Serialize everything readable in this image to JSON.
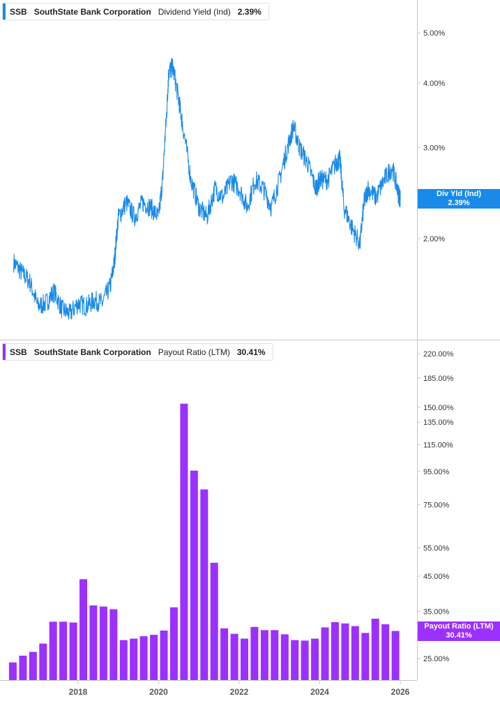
{
  "colors": {
    "yield": "#1a8ae8",
    "payout": "#9b30ff",
    "axis": "#c8c8c8"
  },
  "top_legend": {
    "ticker": "SSB",
    "company": "SouthState Bank Corporation",
    "metric": "Dividend Yield (Ind)",
    "value": "2.39%"
  },
  "bottom_legend": {
    "ticker": "SSB",
    "company": "SouthState Bank Corporation",
    "metric": "Payout Ratio (LTM)",
    "value": "30.41%"
  },
  "top_badge": {
    "label": "Div Yld (Ind)",
    "value": "2.39%"
  },
  "bottom_badge": {
    "label": "Payout Ratio (LTM)",
    "value": "30.41%"
  },
  "chart_data": [
    {
      "type": "line",
      "title": "SSB SouthState Bank Corporation Dividend Yield (Ind) 2.39%",
      "scale": "log",
      "series": [
        {
          "name": "Dividend Yield (Ind)"
        }
      ],
      "y_ticks": [
        {
          "label": "5.00%",
          "value": 5.0
        },
        {
          "label": "4.00%",
          "value": 4.0
        },
        {
          "label": "3.00%",
          "value": 3.0
        },
        {
          "label": "2.00%",
          "value": 2.0
        }
      ],
      "x": [
        2016.4,
        2016.6,
        2016.8,
        2017.0,
        2017.2,
        2017.4,
        2017.6,
        2017.8,
        2018.0,
        2018.2,
        2018.4,
        2018.6,
        2018.8,
        2018.9,
        2019.0,
        2019.2,
        2019.4,
        2019.6,
        2019.8,
        2020.0,
        2020.1,
        2020.2,
        2020.25,
        2020.35,
        2020.5,
        2020.6,
        2020.8,
        2021.0,
        2021.2,
        2021.4,
        2021.6,
        2021.8,
        2022.0,
        2022.2,
        2022.4,
        2022.6,
        2022.8,
        2023.0,
        2023.2,
        2023.35,
        2023.5,
        2023.7,
        2023.9,
        2024.0,
        2024.2,
        2024.4,
        2024.5,
        2024.6,
        2024.8,
        2025.0,
        2025.1,
        2025.2,
        2025.4,
        2025.6,
        2025.8,
        2025.95,
        2026.0
      ],
      "y": [
        1.8,
        1.72,
        1.65,
        1.48,
        1.5,
        1.58,
        1.46,
        1.43,
        1.5,
        1.48,
        1.52,
        1.5,
        1.62,
        1.8,
        2.2,
        2.35,
        2.2,
        2.35,
        2.3,
        2.2,
        2.6,
        3.5,
        4.2,
        4.3,
        3.7,
        3.3,
        2.6,
        2.3,
        2.2,
        2.5,
        2.4,
        2.6,
        2.5,
        2.3,
        2.6,
        2.5,
        2.3,
        2.6,
        3.0,
        3.3,
        3.0,
        2.8,
        2.5,
        2.6,
        2.6,
        2.8,
        2.85,
        2.3,
        2.1,
        1.95,
        2.35,
        2.5,
        2.4,
        2.6,
        2.75,
        2.45,
        2.39
      ],
      "last_value": 2.39
    },
    {
      "type": "bar",
      "title": "SSB SouthState Bank Corporation Payout Ratio (LTM) 30.41%",
      "scale": "log",
      "series": [
        {
          "name": "Payout Ratio (LTM)"
        }
      ],
      "y_ticks": [
        {
          "label": "220.00%",
          "value": 220
        },
        {
          "label": "185.00%",
          "value": 185
        },
        {
          "label": "150.00%",
          "value": 150
        },
        {
          "label": "135.00%",
          "value": 135
        },
        {
          "label": "115.00%",
          "value": 115
        },
        {
          "label": "95.00%",
          "value": 95
        },
        {
          "label": "75.00%",
          "value": 75
        },
        {
          "label": "55.00%",
          "value": 55
        },
        {
          "label": "45.00%",
          "value": 45
        },
        {
          "label": "35.00%",
          "value": 35
        },
        {
          "label": "25.00%",
          "value": 25
        }
      ],
      "x_ticks": [
        "2018",
        "2020",
        "2022",
        "2024",
        "2026"
      ],
      "x_tick_values": [
        2018,
        2020,
        2022,
        2024,
        2026
      ],
      "bar_x": [
        2016.38,
        2016.63,
        2016.88,
        2017.13,
        2017.38,
        2017.63,
        2017.88,
        2018.13,
        2018.38,
        2018.63,
        2018.88,
        2019.13,
        2019.38,
        2019.63,
        2019.88,
        2020.13,
        2020.38,
        2020.63,
        2020.88,
        2021.13,
        2021.38,
        2021.63,
        2021.88,
        2022.13,
        2022.38,
        2022.63,
        2022.88,
        2023.13,
        2023.38,
        2023.63,
        2023.88,
        2024.13,
        2024.38,
        2024.63,
        2024.88,
        2025.13,
        2025.38,
        2025.63,
        2025.88
      ],
      "values": [
        24.3,
        25.5,
        26.2,
        27.8,
        32.5,
        32.5,
        32.3,
        44.0,
        36.5,
        36.2,
        35.5,
        28.5,
        28.8,
        29.3,
        29.6,
        30.5,
        36.0,
        154.0,
        95.5,
        83.5,
        49.5,
        31.0,
        29.8,
        28.8,
        31.3,
        30.6,
        30.6,
        29.7,
        28.5,
        28.4,
        28.8,
        31.2,
        32.4,
        32.1,
        31.5,
        30.0,
        33.2,
        31.9,
        30.41
      ],
      "last_value": 30.41
    }
  ]
}
